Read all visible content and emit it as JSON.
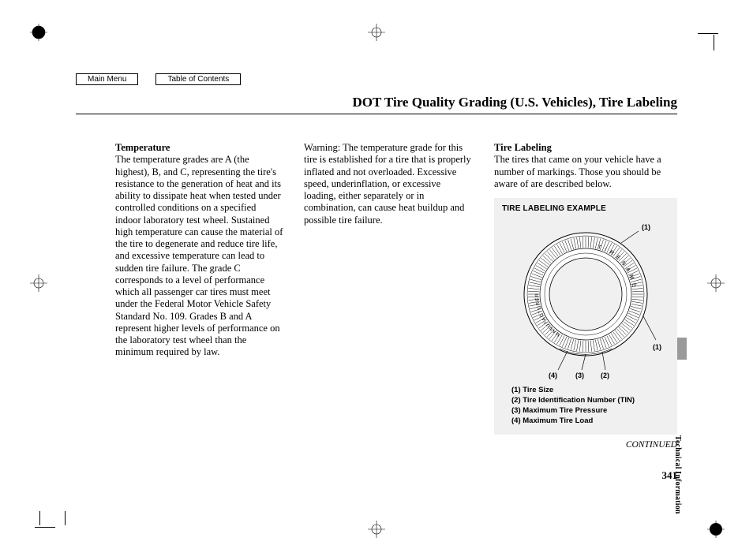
{
  "nav": {
    "main_menu": "Main Menu",
    "toc": "Table of Contents"
  },
  "title": "DOT Tire Quality Grading (U.S. Vehicles), Tire Labeling",
  "col1": {
    "heading": "Temperature",
    "body": "The temperature grades are A (the highest), B, and C, representing the tire's resistance to the generation of heat and its ability to dissipate heat when tested under controlled conditions on a specified indoor laboratory test wheel. Sustained high temperature can cause the material of the tire to degenerate and reduce tire life, and excessive temperature can lead to sudden tire failure. The grade C corresponds to a level of performance which all passenger car tires must meet under the Federal Motor Vehicle Safety Standard No. 109. Grades B and A represent higher levels of performance on the laboratory test wheel than the minimum required by law."
  },
  "col2": {
    "body": "Warning: The temperature grade for this tire is established for a tire that is properly inflated and not overloaded. Excessive speed, underinflation, or excessive loading, either separately or in combination, can cause heat buildup and possible tire failure."
  },
  "col3": {
    "heading": "Tire Labeling",
    "body": "The tires that came on your vehicle have a number of markings. Those you should be aware of are described below.",
    "box_title": "TIRE LABELING EXAMPLE",
    "tire_sidewall": {
      "top_text": "TIRE NAME",
      "left_text": "MANUFACTURER"
    },
    "callouts": {
      "c1": "(1)",
      "c1b": "(1)",
      "c2": "(2)",
      "c3": "(3)",
      "c4": "(4)"
    },
    "legend": {
      "l1": "(1) Tire Size",
      "l2": "(2) Tire Identification Number (TIN)",
      "l3": "(3) Maximum Tire Pressure",
      "l4": "(4) Maximum Tire Load"
    }
  },
  "continued": "CONTINUED",
  "page_number": "341",
  "side_tab": "Technical Information",
  "colors": {
    "box_bg": "#f0f0f0",
    "sidetab_bg": "#9a9a9a",
    "text": "#000000",
    "page_bg": "#ffffff"
  }
}
